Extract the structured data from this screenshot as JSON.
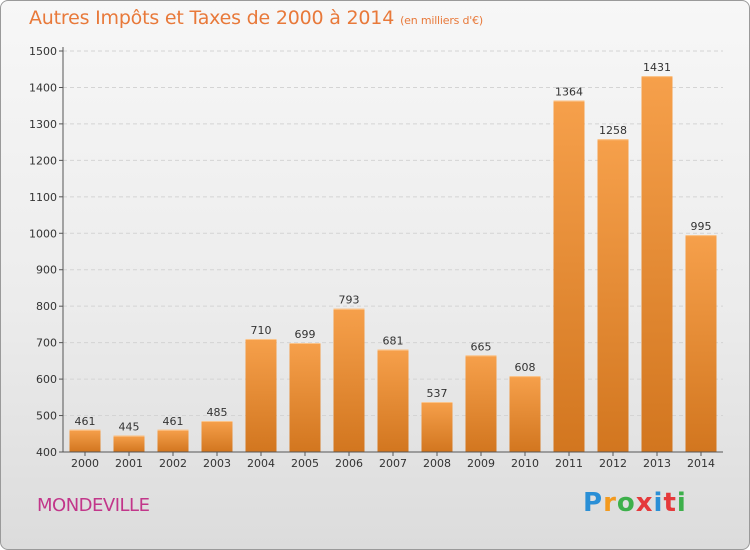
{
  "header": {
    "title": "Autres Impôts et Taxes de 2000 à 2014",
    "subtitle": "(en milliers d'€)"
  },
  "footer": {
    "city": "MONDEVILLE",
    "logo": "Proxiti",
    "logo_colors": [
      "#2a8fd6",
      "#f39a1e",
      "#3db04b",
      "#e5393b",
      "#2a8fd6",
      "#e5393b",
      "#3db04b"
    ]
  },
  "colors": {
    "bar_light": "#f6a04b",
    "bar_dark": "#d2761f",
    "title": "#e8793a",
    "city": "#c2368a"
  },
  "chart_data": {
    "type": "bar",
    "categories": [
      "2000",
      "2001",
      "2002",
      "2003",
      "2004",
      "2005",
      "2006",
      "2007",
      "2008",
      "2009",
      "2010",
      "2011",
      "2012",
      "2013",
      "2014"
    ],
    "values": [
      461,
      445,
      461,
      485,
      710,
      699,
      793,
      681,
      537,
      665,
      608,
      1364,
      1258,
      1431,
      995
    ],
    "ylim": [
      400,
      1500
    ],
    "yticks": [
      400,
      500,
      600,
      700,
      800,
      900,
      1000,
      1100,
      1200,
      1300,
      1400,
      1500
    ],
    "grid": true
  }
}
